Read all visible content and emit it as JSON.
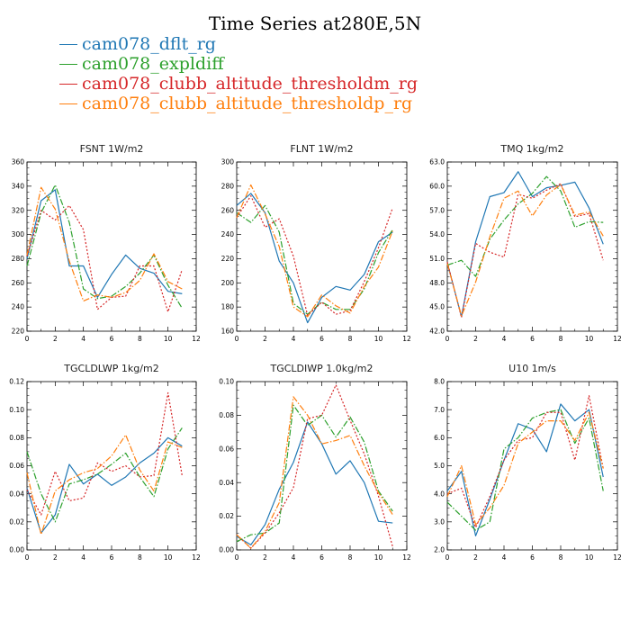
{
  "title": "Time Series at280E,5N",
  "legend": [
    {
      "name": "cam078_dflt_rg",
      "color": "#1f77b4",
      "dash": "solid"
    },
    {
      "name": "cam078_expldiff",
      "color": "#2ca02c",
      "dash": "dashdot"
    },
    {
      "name": "cam078_clubb_altitude_thresholdm_rg",
      "color": "#d62728",
      "dash": "dot"
    },
    {
      "name": "cam078_clubb_altitude_thresholdp_rg",
      "color": "#ff7f0e",
      "dash": "dashdot"
    }
  ],
  "chart_data": [
    {
      "type": "line",
      "title": "FSNT  1W/m2",
      "x": [
        0,
        1,
        2,
        3,
        4,
        5,
        6,
        7,
        8,
        9,
        10,
        11
      ],
      "xlim": [
        0,
        12
      ],
      "xticks": [
        0,
        2,
        4,
        6,
        8,
        10,
        12
      ],
      "ylim": [
        220,
        360
      ],
      "yticks": [
        220,
        240,
        260,
        280,
        300,
        320,
        340,
        360
      ],
      "ytick_labels": [
        "220",
        "240",
        "260",
        "280",
        "300",
        "320",
        "340",
        "360"
      ],
      "series": [
        {
          "name": "cam078_dflt_rg",
          "values": [
            280,
            328,
            337,
            274,
            274,
            248,
            267,
            283,
            272,
            268,
            253,
            251
          ]
        },
        {
          "name": "cam078_expldiff",
          "values": [
            274,
            318,
            341,
            310,
            255,
            247,
            249,
            257,
            268,
            283,
            258,
            239
          ]
        },
        {
          "name": "cam078_clubb_altitude_thresholdm_rg",
          "values": [
            282,
            320,
            312,
            324,
            304,
            238,
            248,
            249,
            274,
            274,
            236,
            271
          ]
        },
        {
          "name": "cam078_clubb_altitude_thresholdp_rg",
          "values": [
            283,
            339,
            321,
            278,
            245,
            250,
            248,
            252,
            262,
            284,
            261,
            255
          ]
        }
      ]
    },
    {
      "type": "line",
      "title": "FLNT  1W/m2",
      "x": [
        0,
        1,
        2,
        3,
        4,
        5,
        6,
        7,
        8,
        9,
        10,
        11
      ],
      "xlim": [
        0,
        12
      ],
      "xticks": [
        0,
        2,
        4,
        6,
        8,
        10,
        12
      ],
      "ylim": [
        160,
        300
      ],
      "yticks": [
        160,
        180,
        200,
        220,
        240,
        260,
        280,
        300
      ],
      "ytick_labels": [
        "160",
        "180",
        "200",
        "220",
        "240",
        "260",
        "280",
        "300"
      ],
      "series": [
        {
          "name": "cam078_dflt_rg",
          "values": [
            264,
            274,
            258,
            218,
            200,
            167,
            188,
            197,
            194,
            207,
            234,
            242
          ]
        },
        {
          "name": "cam078_expldiff",
          "values": [
            258,
            250,
            264,
            242,
            183,
            174,
            184,
            178,
            178,
            195,
            225,
            244
          ]
        },
        {
          "name": "cam078_clubb_altitude_thresholdm_rg",
          "values": [
            254,
            272,
            246,
            253,
            222,
            173,
            184,
            174,
            177,
            201,
            229,
            262
          ]
        },
        {
          "name": "cam078_clubb_altitude_thresholdp_rg",
          "values": [
            254,
            281,
            257,
            230,
            180,
            172,
            190,
            181,
            175,
            197,
            213,
            243
          ]
        }
      ]
    },
    {
      "type": "line",
      "title": "TMQ  1kg/m2",
      "x": [
        0,
        1,
        2,
        3,
        4,
        5,
        6,
        7,
        8,
        9,
        10,
        11
      ],
      "xlim": [
        0,
        12
      ],
      "xticks": [
        0,
        2,
        4,
        6,
        8,
        10,
        12
      ],
      "ylim": [
        42,
        63
      ],
      "yticks": [
        42,
        45,
        48,
        51,
        54,
        57,
        60,
        63
      ],
      "ytick_labels": [
        "42.0",
        "45.0",
        "48.0",
        "51.0",
        "54.0",
        "57.0",
        "60.0",
        "63.0"
      ],
      "series": [
        {
          "name": "cam078_dflt_rg",
          "values": [
            50.5,
            43.8,
            53.1,
            58.7,
            59.2,
            61.8,
            58.7,
            59.8,
            60.1,
            60.5,
            57.3,
            52.8
          ]
        },
        {
          "name": "cam078_expldiff",
          "values": [
            50.2,
            50.8,
            48.8,
            53.4,
            55.8,
            57.8,
            59.1,
            61.2,
            59.4,
            54.9,
            55.6,
            55.5
          ]
        },
        {
          "name": "cam078_clubb_altitude_thresholdm_rg",
          "values": [
            50.6,
            43.7,
            52.9,
            51.8,
            51.2,
            59.0,
            58.5,
            59.5,
            60.3,
            56.2,
            56.6,
            50.8
          ]
        },
        {
          "name": "cam078_clubb_altitude_thresholdp_rg",
          "values": [
            50.4,
            43.9,
            48.1,
            53.7,
            58.5,
            59.4,
            56.3,
            58.9,
            60.2,
            56.4,
            56.8,
            53.8
          ]
        }
      ]
    },
    {
      "type": "line",
      "title": "TGCLDLWP  1kg/m2",
      "x": [
        0,
        1,
        2,
        3,
        4,
        5,
        6,
        7,
        8,
        9,
        10,
        11
      ],
      "xlim": [
        0,
        12
      ],
      "xticks": [
        0,
        2,
        4,
        6,
        8,
        10,
        12
      ],
      "ylim": [
        0,
        0.12
      ],
      "yticks": [
        0,
        0.02,
        0.04,
        0.06,
        0.08,
        0.1,
        0.12
      ],
      "ytick_labels": [
        "0.00",
        "0.02",
        "0.04",
        "0.06",
        "0.08",
        "0.10",
        "0.12"
      ],
      "series": [
        {
          "name": "cam078_dflt_rg",
          "values": [
            0.044,
            0.012,
            0.025,
            0.061,
            0.047,
            0.054,
            0.046,
            0.052,
            0.062,
            0.069,
            0.08,
            0.074
          ]
        },
        {
          "name": "cam078_expldiff",
          "values": [
            0.07,
            0.04,
            0.02,
            0.047,
            0.05,
            0.054,
            0.061,
            0.069,
            0.052,
            0.038,
            0.072,
            0.087
          ]
        },
        {
          "name": "cam078_clubb_altitude_thresholdm_rg",
          "values": [
            0.043,
            0.025,
            0.056,
            0.035,
            0.037,
            0.062,
            0.056,
            0.06,
            0.052,
            0.053,
            0.112,
            0.053
          ]
        },
        {
          "name": "cam078_clubb_altitude_thresholdp_rg",
          "values": [
            0.055,
            0.011,
            0.042,
            0.05,
            0.055,
            0.058,
            0.067,
            0.082,
            0.057,
            0.042,
            0.077,
            0.073
          ]
        }
      ]
    },
    {
      "type": "line",
      "title": "TGCLDIWP  1.0kg/m2",
      "x": [
        0,
        1,
        2,
        3,
        4,
        5,
        6,
        7,
        8,
        9,
        10,
        11
      ],
      "xlim": [
        0,
        12
      ],
      "xticks": [
        0,
        2,
        4,
        6,
        8,
        10,
        12
      ],
      "ylim": [
        0,
        0.1
      ],
      "yticks": [
        0,
        0.02,
        0.04,
        0.06,
        0.08,
        0.1
      ],
      "ytick_labels": [
        "0.00",
        "0.02",
        "0.04",
        "0.06",
        "0.08",
        "0.10"
      ],
      "series": [
        {
          "name": "cam078_dflt_rg",
          "values": [
            0.008,
            0.003,
            0.015,
            0.036,
            0.052,
            0.076,
            0.063,
            0.045,
            0.053,
            0.04,
            0.017,
            0.016
          ]
        },
        {
          "name": "cam078_expldiff",
          "values": [
            0.005,
            0.009,
            0.01,
            0.016,
            0.086,
            0.074,
            0.08,
            0.067,
            0.079,
            0.064,
            0.035,
            0.023
          ]
        },
        {
          "name": "cam078_clubb_altitude_thresholdm_rg",
          "values": [
            0.009,
            0.001,
            0.01,
            0.022,
            0.037,
            0.078,
            0.08,
            0.098,
            0.077,
            0.057,
            0.032,
            0.002
          ]
        },
        {
          "name": "cam078_clubb_altitude_thresholdp_rg",
          "values": [
            0.009,
            0.001,
            0.011,
            0.028,
            0.091,
            0.08,
            0.063,
            0.065,
            0.068,
            0.05,
            0.034,
            0.021
          ]
        }
      ]
    },
    {
      "type": "line",
      "title": "U10  1m/s",
      "x": [
        0,
        1,
        2,
        3,
        4,
        5,
        6,
        7,
        8,
        9,
        10,
        11
      ],
      "xlim": [
        0,
        12
      ],
      "xticks": [
        0,
        2,
        4,
        6,
        8,
        10,
        12
      ],
      "ylim": [
        2,
        8
      ],
      "yticks": [
        2,
        3,
        4,
        5,
        6,
        7,
        8
      ],
      "ytick_labels": [
        "2.0",
        "3.0",
        "4.0",
        "5.0",
        "6.0",
        "7.0",
        "8.0"
      ],
      "series": [
        {
          "name": "cam078_dflt_rg",
          "values": [
            4.1,
            4.8,
            2.5,
            3.8,
            5.2,
            6.5,
            6.3,
            5.5,
            7.2,
            6.6,
            7.0,
            4.6
          ]
        },
        {
          "name": "cam078_expldiff",
          "values": [
            3.7,
            3.2,
            2.7,
            3.0,
            5.6,
            6.0,
            6.7,
            6.9,
            7.0,
            5.8,
            6.7,
            4.1
          ]
        },
        {
          "name": "cam078_clubb_altitude_thresholdm_rg",
          "values": [
            4.0,
            4.2,
            2.8,
            3.9,
            5.2,
            5.9,
            6.0,
            6.9,
            6.9,
            5.2,
            7.5,
            4.9
          ]
        },
        {
          "name": "cam078_clubb_altitude_thresholdp_rg",
          "values": [
            3.9,
            5.0,
            2.9,
            3.5,
            4.3,
            5.8,
            6.2,
            6.6,
            6.6,
            5.9,
            6.9,
            4.9
          ]
        }
      ]
    }
  ]
}
